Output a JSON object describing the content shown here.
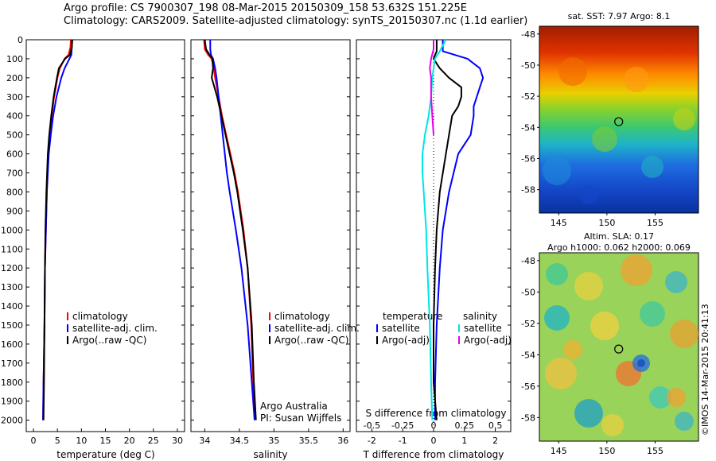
{
  "titles": {
    "line1": "Argo profile: CS 7900307_198 08-Mar-2015 20150309_158 53.632S 151.225E",
    "line2": "Climatology: CARS2009. Satellite-adjusted climatology: synTS_20150307.nc (1.1d earlier)"
  },
  "panel1": {
    "xlabel": "temperature (deg C)",
    "xticks": [
      "0",
      "5",
      "10",
      "15",
      "20",
      "25",
      "30"
    ],
    "legend": [
      "climatology",
      "satellite-adj. clim.",
      "Argo(..raw -QC)"
    ]
  },
  "panel2": {
    "xlabel": "salinity",
    "xticks": [
      "34",
      "34.5",
      "35",
      "35.5",
      "36"
    ],
    "legend": [
      "climatology",
      "satellite-adj. clim.",
      "Argo(..raw -QC)"
    ],
    "note1": "Argo Australia",
    "note2": "PI: Susan Wijffels"
  },
  "panel3": {
    "xlabel": "T difference from climatology",
    "top_label": "S difference from climatology",
    "xticks": [
      "-2",
      "-1",
      "0",
      "1",
      "2"
    ],
    "sticks": [
      "-0.5",
      "-0.25",
      "0",
      "0.25",
      "0.5"
    ],
    "legend_temp_title": "temperature",
    "legend_sal_title": "salinity",
    "legend_temp": [
      "satellite",
      "Argo(-adj)"
    ],
    "legend_sal": [
      "satellite",
      "Argo(-adj)"
    ]
  },
  "depth_ticks": [
    "0",
    "100",
    "200",
    "300",
    "400",
    "500",
    "600",
    "700",
    "800",
    "900",
    "1000",
    "1100",
    "1200",
    "1300",
    "1400",
    "1500",
    "1600",
    "1700",
    "1800",
    "1900",
    "2000"
  ],
  "map1": {
    "title": "sat. SST: 7.97 Argo: 8.1",
    "yticks": [
      "-48",
      "-50",
      "-52",
      "-54",
      "-56",
      "-58"
    ],
    "xticks": [
      "145",
      "150",
      "155"
    ]
  },
  "map2": {
    "title1": "Altim. SLA: 0.17",
    "title2": "Argo h1000: 0.062 h2000: 0.069",
    "yticks": [
      "-48",
      "-50",
      "-52",
      "-54",
      "-56",
      "-58"
    ],
    "xticks": [
      "145",
      "150",
      "155"
    ]
  },
  "credit": "©IMOS 14-Mar-2015 20:41:13",
  "colors": {
    "climatology": "#ff0000",
    "satellite": "#0000ff",
    "argo": "#000000",
    "sat_sal": "#00e5e5",
    "argo_sal": "#e600e6"
  },
  "chart_data": [
    {
      "type": "line",
      "title": "",
      "xlabel": "temperature (deg C)",
      "ylabel": "",
      "xlim": [
        -1.5,
        31.5
      ],
      "ylim": [
        2060,
        0
      ],
      "series": [
        {
          "name": "climatology",
          "depth": [
            0,
            40,
            80,
            100,
            150,
            200,
            300,
            400,
            500,
            600,
            800,
            1000,
            1200,
            1500,
            1800,
            2000
          ],
          "values": [
            7.8,
            7.7,
            7.3,
            6.5,
            5.5,
            5.0,
            4.3,
            3.8,
            3.4,
            3.1,
            2.8,
            2.6,
            2.4,
            2.3,
            2.1,
            2.0
          ]
        },
        {
          "name": "satellite-adj. clim.",
          "depth": [
            0,
            40,
            80,
            100,
            150,
            200,
            300,
            400,
            500,
            600,
            800,
            1000,
            1200,
            1500,
            1800,
            2000
          ],
          "values": [
            8.0,
            8.0,
            7.9,
            7.5,
            6.5,
            5.8,
            4.8,
            4.1,
            3.6,
            3.2,
            2.8,
            2.6,
            2.4,
            2.3,
            2.1,
            2.0
          ]
        },
        {
          "name": "Argo(..raw -QC)",
          "depth": [
            0,
            40,
            80,
            100,
            150,
            200,
            300,
            400,
            500,
            600,
            800,
            1000,
            1200,
            1500,
            1800,
            2000
          ],
          "values": [
            8.1,
            8.0,
            7.6,
            6.6,
            5.3,
            4.9,
            4.2,
            3.7,
            3.3,
            3.0,
            2.7,
            2.5,
            2.4,
            2.3,
            2.2,
            2.1
          ]
        }
      ]
    },
    {
      "type": "line",
      "title": "",
      "xlabel": "salinity",
      "ylabel": "",
      "xlim": [
        33.8,
        36.1
      ],
      "ylim": [
        2060,
        0
      ],
      "series": [
        {
          "name": "climatology",
          "depth": [
            0,
            50,
            80,
            100,
            150,
            200,
            300,
            400,
            500,
            600,
            700,
            800,
            1000,
            1200,
            1500,
            1800,
            2000
          ],
          "values": [
            33.99,
            34.0,
            34.05,
            34.1,
            34.13,
            34.15,
            34.2,
            34.25,
            34.31,
            34.37,
            34.43,
            34.48,
            34.56,
            34.62,
            34.67,
            34.7,
            34.72
          ]
        },
        {
          "name": "satellite-adj. clim.",
          "depth": [
            0,
            50,
            80,
            100,
            150,
            200,
            300,
            400,
            500,
            600,
            700,
            800,
            1000,
            1200,
            1500,
            1800,
            2000
          ],
          "values": [
            34.08,
            34.08,
            34.09,
            34.12,
            34.15,
            34.17,
            34.2,
            34.23,
            34.26,
            34.29,
            34.32,
            34.36,
            34.45,
            34.53,
            34.62,
            34.68,
            34.72
          ]
        },
        {
          "name": "Argo(..raw -QC)",
          "depth": [
            0,
            50,
            80,
            100,
            150,
            200,
            300,
            400,
            500,
            600,
            700,
            800,
            1000,
            1200,
            1500,
            1800,
            2000
          ],
          "values": [
            34.0,
            34.02,
            34.07,
            34.11,
            34.12,
            34.1,
            34.18,
            34.24,
            34.3,
            34.36,
            34.42,
            34.47,
            34.55,
            34.62,
            34.68,
            34.71,
            34.74
          ]
        }
      ]
    },
    {
      "type": "line",
      "title": "",
      "xlabel": "T difference from climatology",
      "ylabel": "",
      "xlim": [
        -2.5,
        2.5
      ],
      "ylim": [
        2060,
        0
      ],
      "series": [
        {
          "name": "temperature satellite",
          "depth": [
            0,
            60,
            100,
            150,
            200,
            250,
            300,
            350,
            400,
            500,
            600,
            800,
            1000,
            1200,
            1500,
            1800,
            2000
          ],
          "values": [
            0.3,
            0.3,
            1.1,
            1.5,
            1.6,
            1.5,
            1.4,
            1.3,
            1.3,
            1.2,
            0.8,
            0.5,
            0.3,
            0.2,
            0.1,
            0.05,
            0.05
          ]
        },
        {
          "name": "temperature Argo(-adj)",
          "depth": [
            0,
            60,
            100,
            150,
            200,
            250,
            300,
            350,
            400,
            500,
            600,
            800,
            1000,
            1200,
            1500,
            1800,
            2000
          ],
          "values": [
            0.1,
            0.1,
            0.0,
            0.2,
            0.5,
            0.9,
            0.9,
            0.8,
            0.6,
            0.5,
            0.4,
            0.2,
            0.1,
            0.05,
            0.0,
            0.0,
            0.1
          ]
        },
        {
          "name": "salinity satellite",
          "depth": [
            0,
            60,
            100,
            150,
            200,
            300,
            400,
            500,
            600,
            700,
            800,
            1000,
            1200,
            1500,
            1800,
            2000
          ],
          "values": [
            0.1,
            0.05,
            0.01,
            0.0,
            -0.01,
            -0.02,
            -0.04,
            -0.07,
            -0.09,
            -0.09,
            -0.08,
            -0.06,
            -0.05,
            -0.03,
            -0.02,
            -0.01
          ]
        },
        {
          "name": "salinity Argo(-adj)",
          "depth": [
            0,
            50,
            100,
            150,
            200,
            300,
            400,
            500
          ],
          "values": [
            0.0,
            0.0,
            -0.02,
            -0.03,
            -0.02,
            -0.02,
            -0.01,
            0.0
          ]
        }
      ]
    },
    {
      "type": "heatmap",
      "title": "sat. SST: 7.97 Argo: 8.1",
      "xlabel": "",
      "ylabel": "",
      "xlim": [
        143,
        159.5
      ],
      "ylim": [
        -59.5,
        -47.5
      ],
      "argo_position": [
        151.225,
        -53.632
      ]
    },
    {
      "type": "heatmap",
      "title": "Altim. SLA: 0.17",
      "xlabel": "",
      "ylabel": "",
      "xlim": [
        143,
        159.5
      ],
      "ylim": [
        -59.5,
        -47.5
      ],
      "argo_position": [
        151.225,
        -53.632
      ]
    }
  ]
}
